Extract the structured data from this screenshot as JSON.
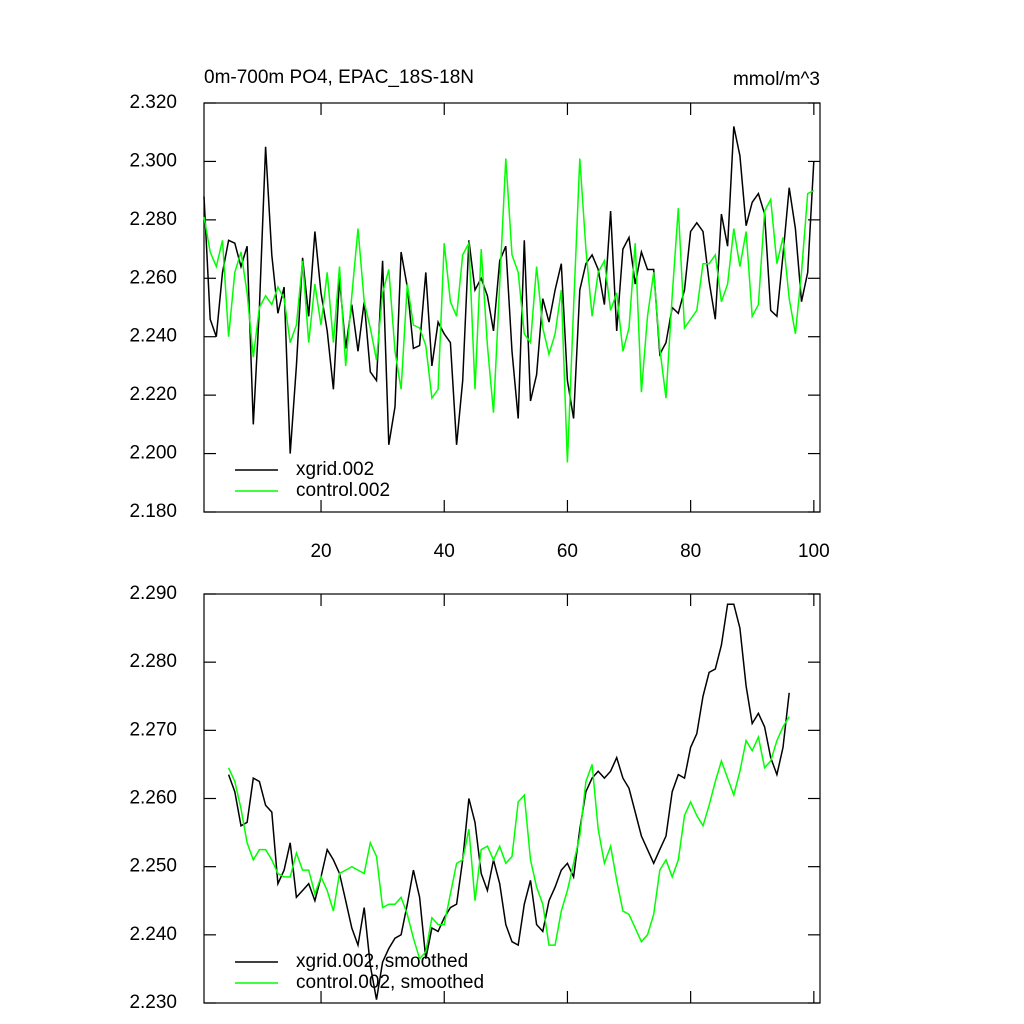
{
  "chart_data": [
    {
      "type": "line",
      "title": "0m-700m PO4, EPAC_18S-18N",
      "units": "mmol/m^3",
      "x": [
        1,
        2,
        3,
        4,
        5,
        6,
        7,
        8,
        9,
        10,
        11,
        12,
        13,
        14,
        15,
        16,
        17,
        18,
        19,
        20,
        21,
        22,
        23,
        24,
        25,
        26,
        27,
        28,
        29,
        30,
        31,
        32,
        33,
        34,
        35,
        36,
        37,
        38,
        39,
        40,
        41,
        42,
        43,
        44,
        45,
        46,
        47,
        48,
        49,
        50,
        51,
        52,
        53,
        54,
        55,
        56,
        57,
        58,
        59,
        60,
        61,
        62,
        63,
        64,
        65,
        66,
        67,
        68,
        69,
        70,
        71,
        72,
        73,
        74,
        75,
        76,
        77,
        78,
        79,
        80,
        81,
        82,
        83,
        84,
        85,
        86,
        87,
        88,
        89,
        90,
        91,
        92,
        93,
        94,
        95,
        96,
        97,
        98,
        99,
        100
      ],
      "series": [
        {
          "name": "xgrid.002",
          "color": "#000000",
          "values": [
            2.288,
            2.246,
            2.24,
            2.262,
            2.273,
            2.272,
            2.264,
            2.271,
            2.21,
            2.25,
            2.305,
            2.268,
            2.248,
            2.257,
            2.2,
            2.23,
            2.267,
            2.247,
            2.276,
            2.255,
            2.242,
            2.222,
            2.26,
            2.236,
            2.251,
            2.235,
            2.252,
            2.228,
            2.225,
            2.266,
            2.203,
            2.216,
            2.269,
            2.257,
            2.236,
            2.237,
            2.262,
            2.23,
            2.245,
            2.241,
            2.238,
            2.203,
            2.225,
            2.273,
            2.256,
            2.26,
            2.254,
            2.242,
            2.266,
            2.271,
            2.235,
            2.212,
            2.273,
            2.218,
            2.227,
            2.253,
            2.245,
            2.256,
            2.265,
            2.225,
            2.212,
            2.256,
            2.265,
            2.268,
            2.263,
            2.251,
            2.283,
            2.242,
            2.27,
            2.274,
            2.258,
            2.269,
            2.263,
            2.263,
            2.234,
            2.238,
            2.25,
            2.248,
            2.256,
            2.276,
            2.279,
            2.276,
            2.259,
            2.246,
            2.282,
            2.271,
            2.312,
            2.302,
            2.278,
            2.286,
            2.289,
            2.282,
            2.249,
            2.247,
            2.268,
            2.291,
            2.277,
            2.252,
            2.262,
            2.3
          ]
        },
        {
          "name": "control.002",
          "color": "#00ff00",
          "values": [
            2.281,
            2.269,
            2.264,
            2.273,
            2.24,
            2.262,
            2.269,
            2.255,
            2.233,
            2.25,
            2.254,
            2.251,
            2.257,
            2.253,
            2.238,
            2.244,
            2.266,
            2.238,
            2.258,
            2.244,
            2.262,
            2.238,
            2.264,
            2.23,
            2.254,
            2.277,
            2.252,
            2.243,
            2.232,
            2.255,
            2.263,
            2.235,
            2.222,
            2.258,
            2.244,
            2.243,
            2.237,
            2.219,
            2.222,
            2.272,
            2.252,
            2.247,
            2.268,
            2.272,
            2.222,
            2.27,
            2.237,
            2.214,
            2.258,
            2.301,
            2.268,
            2.262,
            2.241,
            2.238,
            2.264,
            2.243,
            2.234,
            2.241,
            2.256,
            2.197,
            2.25,
            2.301,
            2.27,
            2.247,
            2.262,
            2.266,
            2.249,
            2.255,
            2.235,
            2.243,
            2.272,
            2.221,
            2.247,
            2.262,
            2.236,
            2.219,
            2.254,
            2.284,
            2.243,
            2.246,
            2.249,
            2.265,
            2.265,
            2.268,
            2.252,
            2.258,
            2.277,
            2.264,
            2.276,
            2.247,
            2.251,
            2.283,
            2.287,
            2.265,
            2.274,
            2.253,
            2.241,
            2.262,
            2.289,
            2.29
          ]
        }
      ],
      "xlim": [
        1,
        101
      ],
      "xticks": [
        20,
        40,
        60,
        80,
        100
      ],
      "ylim": [
        2.18,
        2.32
      ],
      "yticks": [
        {
          "value": 2.18,
          "label": "2.180"
        },
        {
          "value": 2.2,
          "label": "2.200"
        },
        {
          "value": 2.22,
          "label": "2.220"
        },
        {
          "value": 2.24,
          "label": "2.240"
        },
        {
          "value": 2.26,
          "label": "2.260"
        },
        {
          "value": 2.28,
          "label": "2.280"
        },
        {
          "value": 2.3,
          "label": "2.300"
        },
        {
          "value": 2.32,
          "label": "2.320"
        }
      ]
    },
    {
      "type": "line",
      "x": [
        5,
        6,
        7,
        8,
        9,
        10,
        11,
        12,
        13,
        14,
        15,
        16,
        17,
        18,
        19,
        20,
        21,
        22,
        23,
        24,
        25,
        26,
        27,
        28,
        29,
        30,
        31,
        32,
        33,
        34,
        35,
        36,
        37,
        38,
        39,
        40,
        41,
        42,
        43,
        44,
        45,
        46,
        47,
        48,
        49,
        50,
        51,
        52,
        53,
        54,
        55,
        56,
        57,
        58,
        59,
        60,
        61,
        62,
        63,
        64,
        65,
        66,
        67,
        68,
        69,
        70,
        71,
        72,
        73,
        74,
        75,
        76,
        77,
        78,
        79,
        80,
        81,
        82,
        83,
        84,
        85,
        86,
        87,
        88,
        89,
        90,
        91,
        92,
        93,
        94,
        95,
        96
      ],
      "series": [
        {
          "name": "xgrid.002, smoothed",
          "color": "#000000",
          "values": [
            2.2635,
            2.261,
            2.256,
            2.2565,
            2.263,
            2.2625,
            2.259,
            2.258,
            2.2475,
            2.2495,
            2.2535,
            2.2455,
            2.2465,
            2.2475,
            2.245,
            2.2485,
            2.2525,
            2.251,
            2.249,
            2.245,
            2.241,
            2.2385,
            2.244,
            2.2355,
            2.2305,
            2.236,
            2.238,
            2.2395,
            2.24,
            2.2445,
            2.2495,
            2.2455,
            2.2365,
            2.241,
            2.2405,
            2.2425,
            2.244,
            2.2445,
            2.251,
            2.26,
            2.2565,
            2.249,
            2.2465,
            2.251,
            2.2475,
            2.2415,
            2.239,
            2.2385,
            2.2445,
            2.248,
            2.2415,
            2.2405,
            2.245,
            2.247,
            2.2495,
            2.2505,
            2.2485,
            2.2555,
            2.261,
            2.263,
            2.264,
            2.263,
            2.264,
            2.266,
            2.263,
            2.2615,
            2.258,
            2.2545,
            2.2525,
            2.2505,
            2.2525,
            2.2545,
            2.261,
            2.2635,
            2.263,
            2.2675,
            2.2695,
            2.275,
            2.2785,
            2.279,
            2.2825,
            2.2885,
            2.2885,
            2.285,
            2.2765,
            2.271,
            2.2725,
            2.2705,
            2.266,
            2.2635,
            2.2675,
            2.2755
          ]
        },
        {
          "name": "control.002, smoothed",
          "color": "#00ff00",
          "values": [
            2.2645,
            2.2625,
            2.2585,
            2.2535,
            2.251,
            2.2525,
            2.2525,
            2.251,
            2.249,
            2.2485,
            2.2485,
            2.252,
            2.2495,
            2.2495,
            2.246,
            2.2485,
            2.2465,
            2.2435,
            2.249,
            2.2495,
            2.25,
            2.2495,
            2.249,
            2.2535,
            2.2515,
            2.244,
            2.2445,
            2.2445,
            2.2455,
            2.243,
            2.2395,
            2.2365,
            2.2375,
            2.2425,
            2.2415,
            2.2415,
            2.246,
            2.2505,
            2.251,
            2.2555,
            2.245,
            2.2525,
            2.253,
            2.251,
            2.253,
            2.2505,
            2.2515,
            2.2595,
            2.2605,
            2.251,
            2.247,
            2.2445,
            2.2385,
            2.2385,
            2.2435,
            2.2465,
            2.2505,
            2.2545,
            2.2625,
            2.265,
            2.2555,
            2.2505,
            2.253,
            2.248,
            2.2435,
            2.243,
            2.241,
            2.239,
            2.24,
            2.243,
            2.2495,
            2.251,
            2.2485,
            2.251,
            2.2575,
            2.2595,
            2.2575,
            2.256,
            2.259,
            2.2625,
            2.2655,
            2.263,
            2.2605,
            2.264,
            2.2685,
            2.267,
            2.269,
            2.2645,
            2.2655,
            2.2685,
            2.2705,
            2.272
          ]
        }
      ],
      "xlim": [
        1,
        101
      ],
      "xticks": [
        20,
        40,
        60,
        80,
        100
      ],
      "ylim": [
        2.23,
        2.29
      ],
      "yticks": [
        {
          "value": 2.23,
          "label": "2.230"
        },
        {
          "value": 2.24,
          "label": "2.240"
        },
        {
          "value": 2.25,
          "label": "2.250"
        },
        {
          "value": 2.26,
          "label": "2.260"
        },
        {
          "value": 2.27,
          "label": "2.270"
        },
        {
          "value": 2.28,
          "label": "2.280"
        },
        {
          "value": 2.29,
          "label": "2.290"
        }
      ]
    }
  ]
}
